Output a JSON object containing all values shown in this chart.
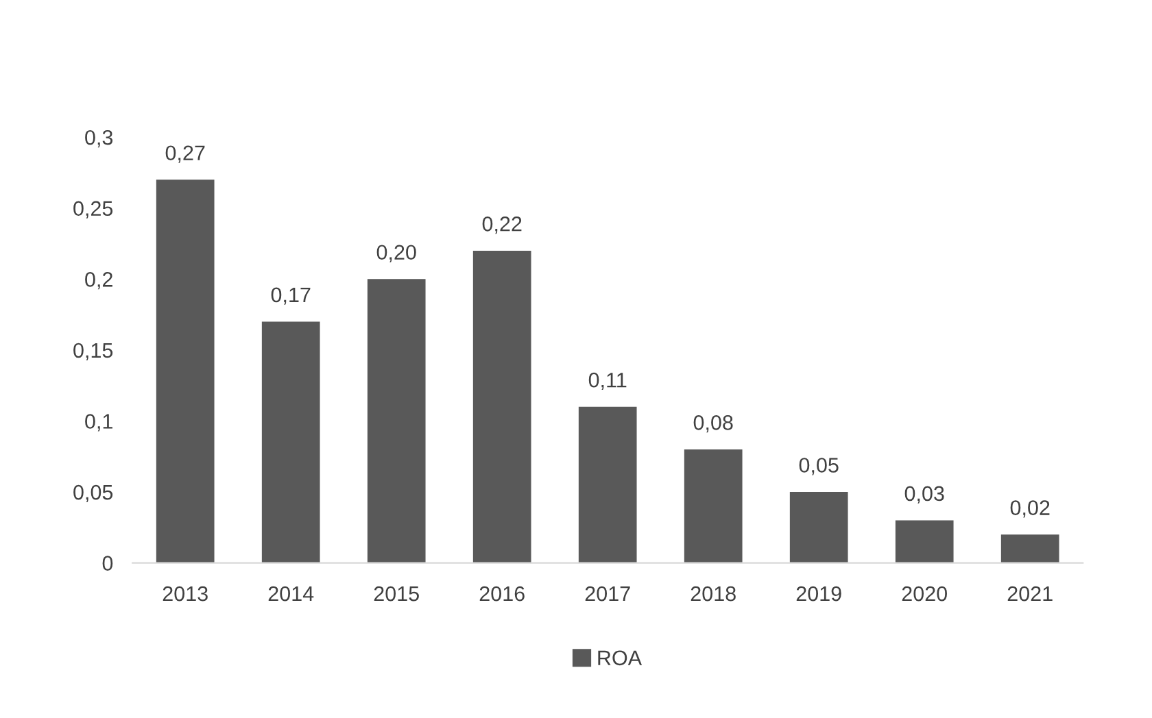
{
  "chart_data": {
    "type": "bar",
    "categories": [
      "2013",
      "2014",
      "2015",
      "2016",
      "2017",
      "2018",
      "2019",
      "2020",
      "2021"
    ],
    "series": [
      {
        "name": "ROA",
        "color": "#595959",
        "values": [
          0.27,
          0.17,
          0.2,
          0.22,
          0.11,
          0.08,
          0.05,
          0.03,
          0.02
        ],
        "value_labels": [
          "0,27",
          "0,17",
          "0,20",
          "0,22",
          "0,11",
          "0,08",
          "0,05",
          "0,03",
          "0,02"
        ]
      }
    ],
    "ylim": [
      0,
      0.3
    ],
    "yticks": [
      0,
      {
        "value": 0.05,
        "label": "0,05"
      },
      {
        "value": 0.1,
        "label": "0,1"
      },
      {
        "value": 0.15,
        "label": "0,15"
      },
      {
        "value": 0.2,
        "label": "0,2"
      },
      {
        "value": 0.25,
        "label": "0,25"
      },
      {
        "value": 0.3,
        "label": "0,3"
      }
    ],
    "grid": false,
    "legend": "bottom"
  }
}
